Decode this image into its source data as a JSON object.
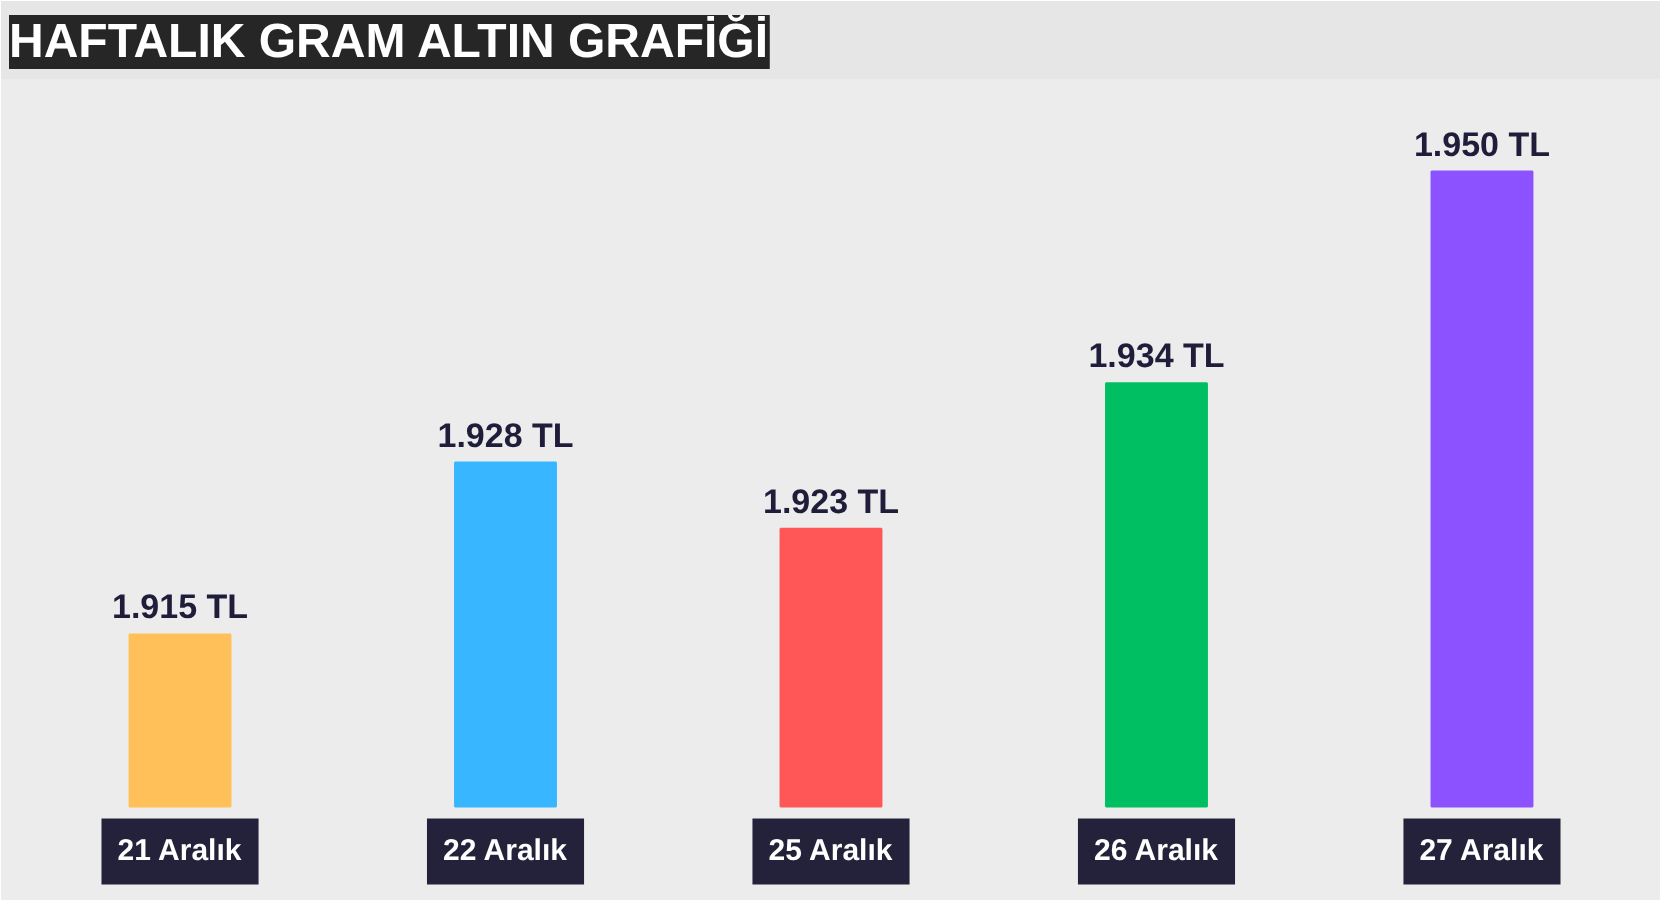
{
  "chart_data": {
    "type": "bar",
    "title": "HAFTALIK GRAM ALTIN GRAFİĞİ",
    "categories": [
      "21 Aralık",
      "22 Aralık",
      "25 Aralık",
      "26 Aralık",
      "27 Aralık"
    ],
    "values": [
      1915,
      1928,
      1923,
      1934,
      1950
    ],
    "value_labels": [
      "1.915 TL",
      "1.928 TL",
      "1.923 TL",
      "1.934 TL",
      "1.950 TL"
    ],
    "colors": [
      "#ffc05a",
      "#38b6ff",
      "#ff5757",
      "#00bf63",
      "#8c52ff"
    ],
    "ylim": [
      1902,
      1957
    ],
    "tick_labels": false,
    "grid": false
  }
}
